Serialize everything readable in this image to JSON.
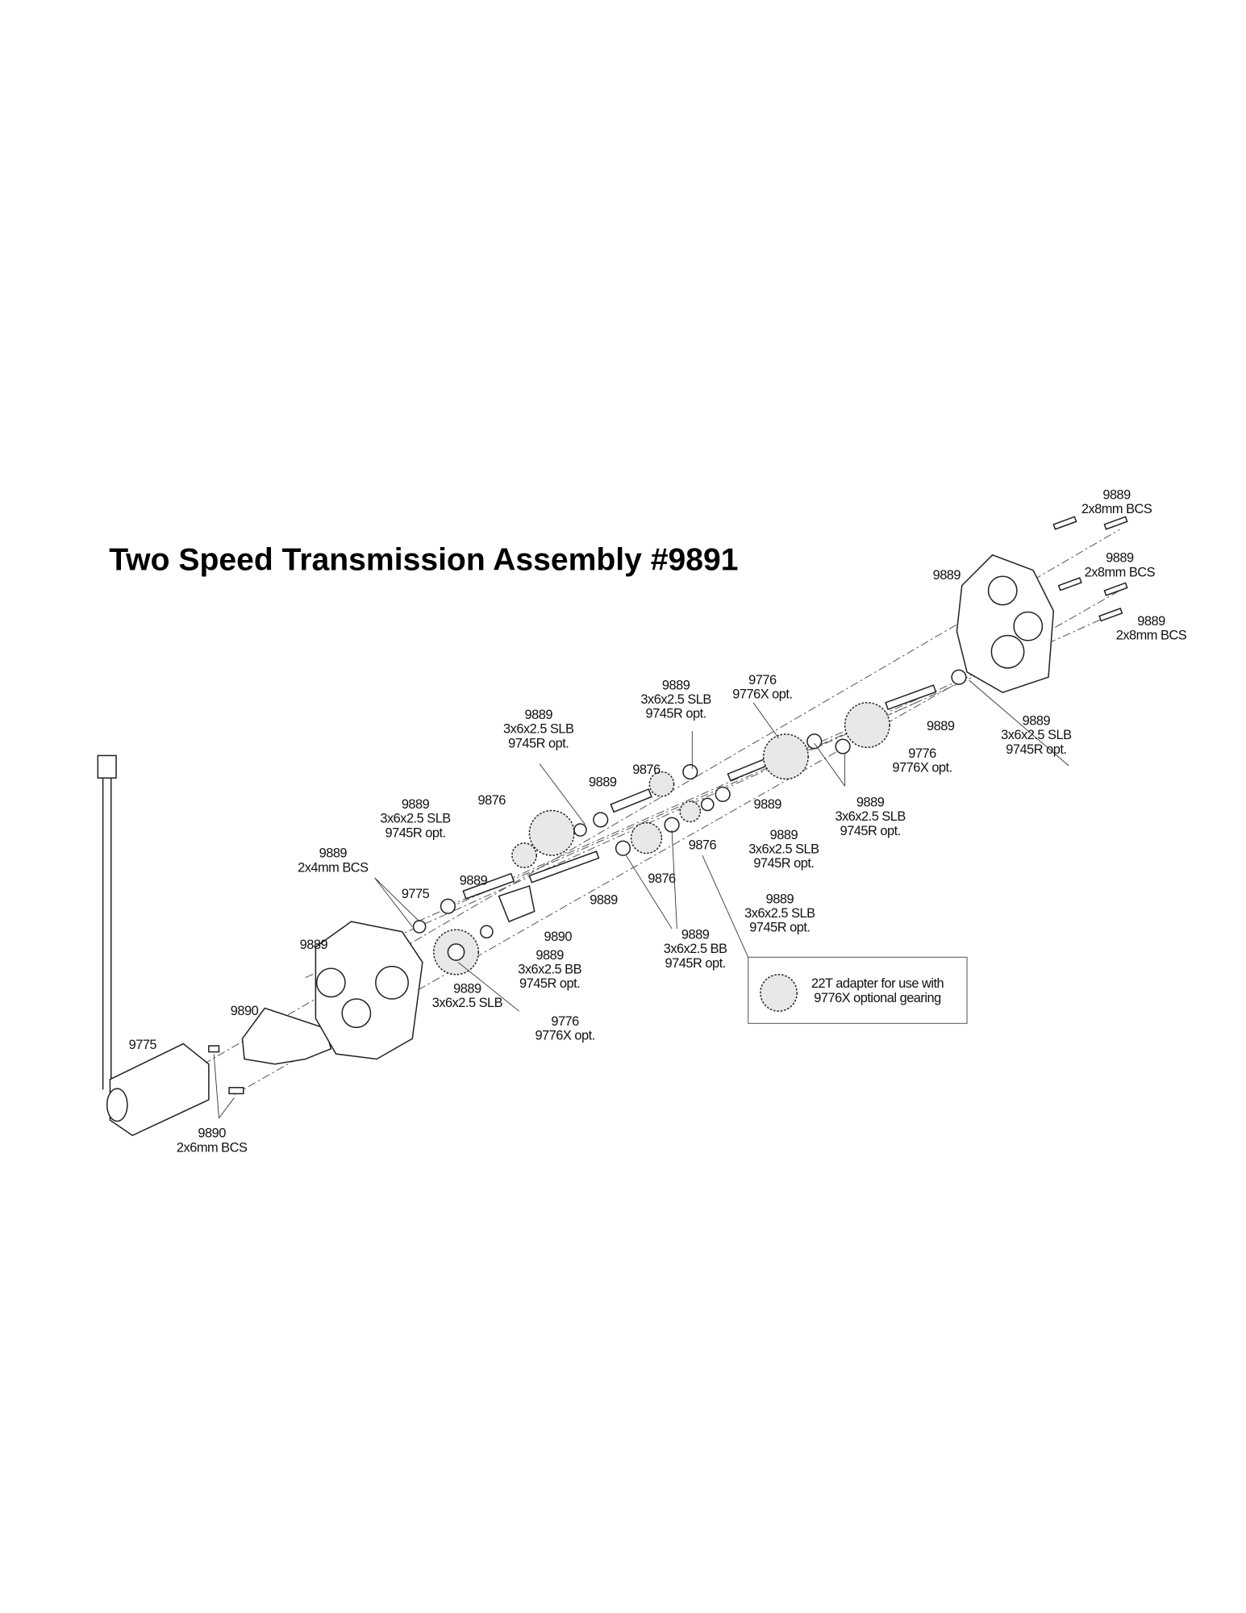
{
  "title": "Two Speed Transmission Assembly #9891",
  "callouts": [
    {
      "lines": [
        "9889",
        "2x8mm BCS"
      ]
    },
    {
      "lines": [
        "9889",
        "2x8mm BCS"
      ]
    },
    {
      "lines": [
        "9889",
        "2x8mm BCS"
      ]
    },
    {
      "lines": [
        "9889"
      ]
    },
    {
      "lines": [
        "9889",
        "3x6x2.5 SLB",
        "9745R opt."
      ]
    },
    {
      "lines": [
        "9889"
      ]
    },
    {
      "lines": [
        "9776",
        "9776X opt."
      ]
    },
    {
      "lines": [
        "9776",
        "9776X opt."
      ]
    },
    {
      "lines": [
        "9889",
        "3x6x2.5 SLB",
        "9745R opt."
      ]
    },
    {
      "lines": [
        "9889",
        "3x6x2.5 SLB",
        "9745R opt."
      ]
    },
    {
      "lines": [
        "9889"
      ]
    },
    {
      "lines": [
        "9876"
      ]
    },
    {
      "lines": [
        "9889"
      ]
    },
    {
      "lines": [
        "9889",
        "3x6x2.5 SLB",
        "9745R opt."
      ]
    },
    {
      "lines": [
        "9889",
        "3x6x2.5 SLB",
        "9745R opt."
      ]
    },
    {
      "lines": [
        "9876"
      ]
    },
    {
      "lines": [
        "9889",
        "3x6x2.5 SLB",
        "9745R opt."
      ]
    },
    {
      "lines": [
        "9889",
        "2x4mm BCS"
      ]
    },
    {
      "lines": [
        "9775"
      ]
    },
    {
      "lines": [
        "9889"
      ]
    },
    {
      "lines": [
        "9876"
      ]
    },
    {
      "lines": [
        "9876"
      ]
    },
    {
      "lines": [
        "9889"
      ]
    },
    {
      "lines": [
        "9890"
      ]
    },
    {
      "lines": [
        "9889",
        "3x6x2.5 SLB",
        "9745R opt."
      ]
    },
    {
      "lines": [
        "9889"
      ]
    },
    {
      "lines": [
        "9889",
        "3x6x2.5 BB",
        "9745R opt."
      ]
    },
    {
      "lines": [
        "9889",
        "3x6x2.5 BB",
        "9745R opt."
      ]
    },
    {
      "lines": [
        "9889",
        "3x6x2.5 SLB"
      ]
    },
    {
      "lines": [
        "9776",
        "9776X opt."
      ]
    },
    {
      "lines": [
        "9890"
      ]
    },
    {
      "lines": [
        "9775"
      ]
    },
    {
      "lines": [
        "9890",
        "2x6mm BCS"
      ]
    },
    {
      "lines": [
        "22T adapter for use with",
        "9776X optional gearing"
      ]
    }
  ]
}
